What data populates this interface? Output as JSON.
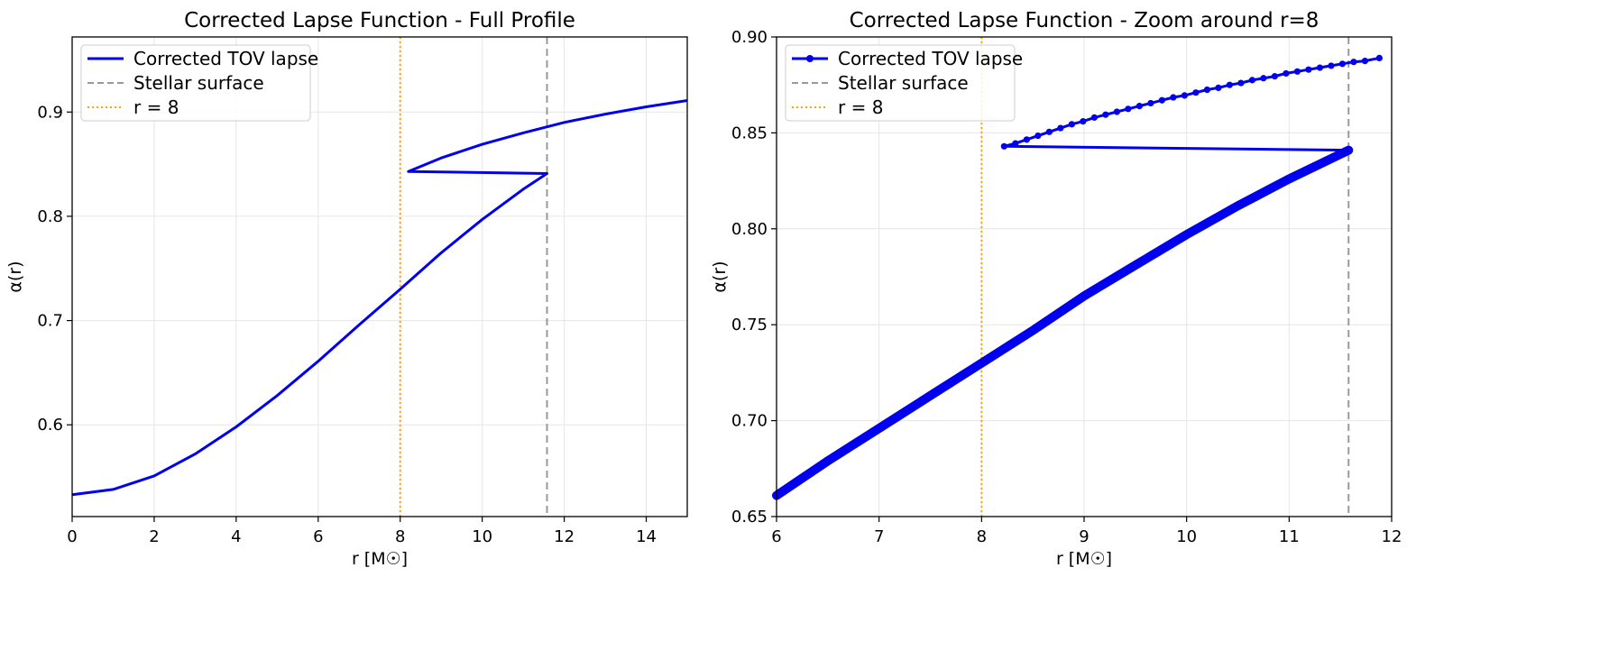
{
  "chart_data": [
    {
      "type": "line",
      "title": "Corrected Lapse Function - Full Profile",
      "xlabel": "r [M☉]",
      "ylabel": "α(r)",
      "xlim": [
        0,
        15
      ],
      "ylim": [
        0.512,
        0.972
      ],
      "xticks": [
        "0",
        "2",
        "4",
        "6",
        "8",
        "10",
        "12",
        "14"
      ],
      "yticks": [
        "0.6",
        "0.7",
        "0.8",
        "0.9"
      ],
      "grid": true,
      "legend_position": "top-left",
      "legend": [
        "Corrected TOV lapse",
        "Stellar surface",
        "r = 8"
      ],
      "vlines": [
        {
          "name": "Stellar surface",
          "x": 11.58,
          "color": "#999999",
          "style": "dashed"
        },
        {
          "name": "r = 8",
          "x": 8.0,
          "color": "#ffa500",
          "style": "dotted"
        }
      ],
      "series": [
        {
          "name": "Corrected TOV lapse",
          "color": "#0000ee",
          "x": [
            0,
            1,
            2,
            3,
            4,
            5,
            6,
            7,
            8,
            9,
            10,
            11,
            11.58,
            8.2,
            9,
            10,
            11,
            12,
            13,
            14,
            15
          ],
          "y": [
            0.533,
            0.538,
            0.551,
            0.572,
            0.598,
            0.628,
            0.661,
            0.696,
            0.73,
            0.765,
            0.797,
            0.826,
            0.841,
            0.843,
            0.856,
            0.869,
            0.88,
            0.89,
            0.898,
            0.905,
            0.911
          ]
        }
      ]
    },
    {
      "type": "line",
      "title": "Corrected Lapse Function - Zoom around r=8",
      "xlabel": "r [M☉]",
      "ylabel": "α(r)",
      "xlim": [
        6,
        12
      ],
      "ylim": [
        0.65,
        0.9
      ],
      "xticks": [
        "6",
        "7",
        "8",
        "9",
        "10",
        "11",
        "12"
      ],
      "yticks": [
        "0.65",
        "0.70",
        "0.75",
        "0.80",
        "0.85",
        "0.90"
      ],
      "grid": true,
      "legend_position": "top-left",
      "legend": [
        "Corrected TOV lapse",
        "Stellar surface",
        "r = 8"
      ],
      "vlines": [
        {
          "name": "Stellar surface",
          "x": 11.58,
          "color": "#999999",
          "style": "dashed"
        },
        {
          "name": "r = 8",
          "x": 8.0,
          "color": "#ffa500",
          "style": "dotted"
        }
      ],
      "series": [
        {
          "name": "Corrected TOV lapse",
          "color": "#0000ee",
          "interior_x": [
            6,
            6.5,
            7,
            7.5,
            8,
            8.5,
            9,
            9.5,
            10,
            10.5,
            11,
            11.58
          ],
          "interior_y": [
            0.661,
            0.679,
            0.696,
            0.713,
            0.73,
            0.747,
            0.765,
            0.781,
            0.797,
            0.812,
            0.826,
            0.841
          ],
          "jump_x": [
            11.58,
            8.22
          ],
          "jump_y": [
            0.841,
            0.843
          ],
          "exterior_x": [
            8.22,
            8.33,
            8.44,
            8.55,
            8.66,
            8.77,
            8.88,
            8.99,
            9.1,
            9.21,
            9.32,
            9.43,
            9.54,
            9.65,
            9.76,
            9.87,
            9.98,
            10.09,
            10.2,
            10.31,
            10.42,
            10.53,
            10.64,
            10.75,
            10.86,
            10.97,
            11.08,
            11.19,
            11.3,
            11.41,
            11.52,
            11.63,
            11.74,
            11.88
          ],
          "exterior_y": [
            0.843,
            0.8445,
            0.8465,
            0.8485,
            0.8505,
            0.8525,
            0.8545,
            0.856,
            0.858,
            0.8595,
            0.861,
            0.8625,
            0.864,
            0.8655,
            0.867,
            0.8685,
            0.8695,
            0.871,
            0.8725,
            0.8735,
            0.875,
            0.876,
            0.8775,
            0.8785,
            0.8795,
            0.881,
            0.882,
            0.883,
            0.884,
            0.885,
            0.886,
            0.887,
            0.8875,
            0.889
          ]
        }
      ]
    }
  ]
}
